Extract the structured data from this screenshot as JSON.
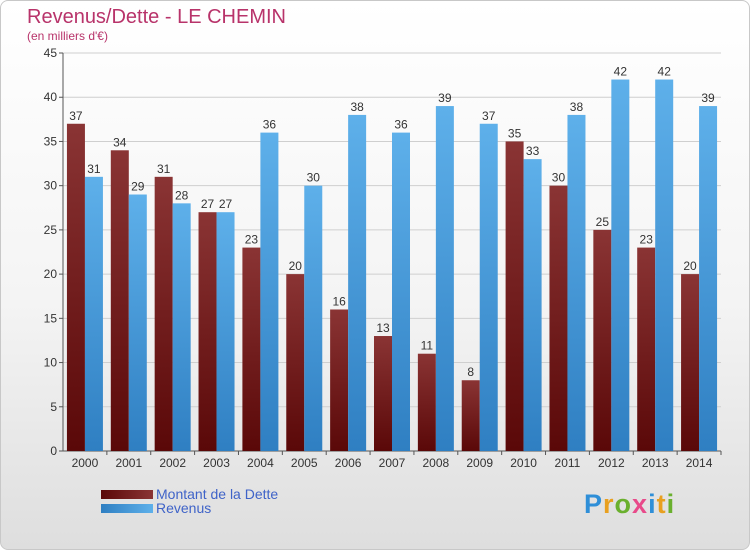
{
  "header": {
    "title": "Revenus/Dette - LE CHEMIN",
    "subtitle": "(en milliers d'€)"
  },
  "colors": {
    "dette_dark": "#5a0808",
    "dette_light": "#8a3434",
    "revenus_dark": "#2f7fc2",
    "revenus_light": "#5eb0ea",
    "axis": "#555555",
    "grid": "#cfcfcf",
    "label": "#333333"
  },
  "brand": {
    "letters": [
      {
        "ch": "P",
        "color": "#2f8fd8"
      },
      {
        "ch": "r",
        "color": "#e8a020"
      },
      {
        "ch": "o",
        "color": "#6ab02e"
      },
      {
        "ch": "x",
        "color": "#e84a8a"
      },
      {
        "ch": "i",
        "color": "#2f8fd8"
      },
      {
        "ch": "t",
        "color": "#e8a020"
      },
      {
        "ch": "i",
        "color": "#6ab02e"
      }
    ]
  },
  "chart_data": {
    "type": "bar",
    "title": "Revenus/Dette - LE CHEMIN",
    "subtitle": "(en milliers d'€)",
    "categories": [
      "2000",
      "2001",
      "2002",
      "2003",
      "2004",
      "2005",
      "2006",
      "2007",
      "2008",
      "2009",
      "2010",
      "2011",
      "2012",
      "2013",
      "2014"
    ],
    "series": [
      {
        "name": "Montant de la Dette",
        "values": [
          37,
          34,
          31,
          27,
          23,
          20,
          16,
          13,
          11,
          8,
          35,
          30,
          25,
          23,
          20
        ]
      },
      {
        "name": "Revenus",
        "values": [
          31,
          29,
          28,
          27,
          36,
          30,
          38,
          36,
          39,
          37,
          33,
          38,
          42,
          42,
          39
        ]
      }
    ],
    "ylim": [
      0,
      45
    ],
    "yticks": [
      0,
      5,
      10,
      15,
      20,
      25,
      30,
      35,
      40,
      45
    ],
    "grid": true,
    "legend": "bottom-left"
  }
}
